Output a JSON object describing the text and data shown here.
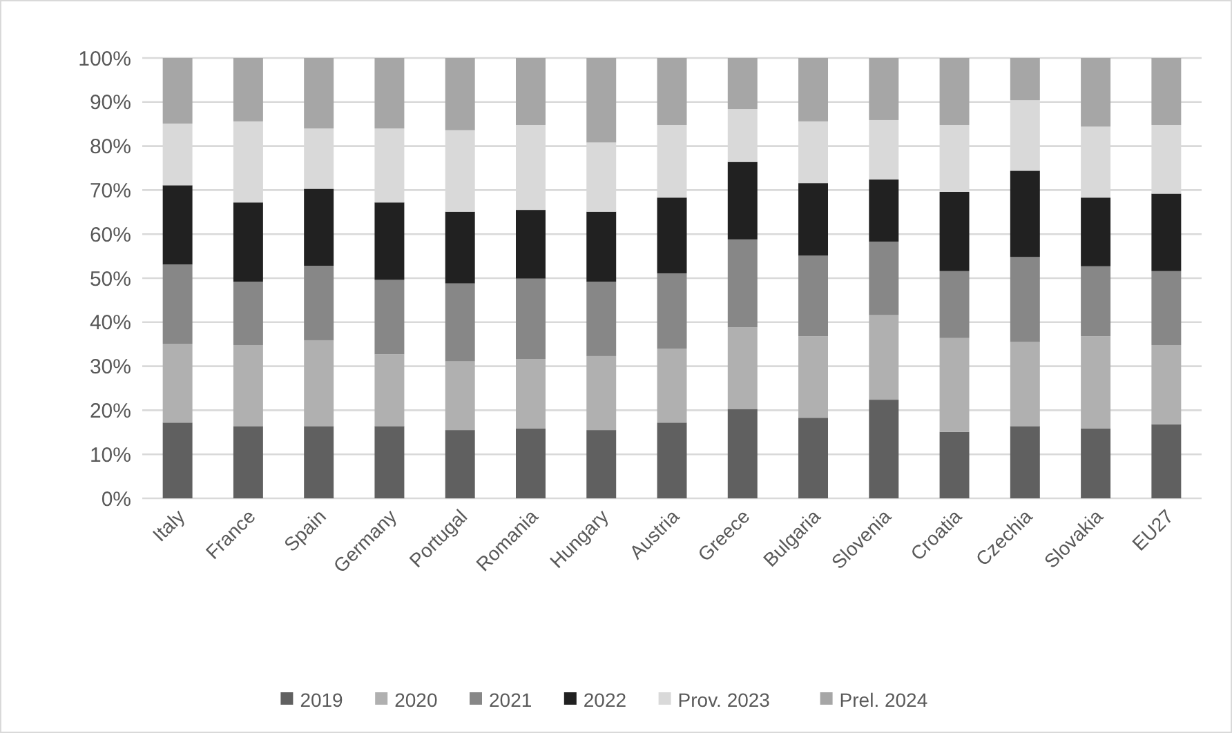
{
  "chart_data": {
    "type": "bar",
    "stacked": true,
    "categories": [
      "Italy",
      "France",
      "Spain",
      "Germany",
      "Portugal",
      "Romania",
      "Hungary",
      "Austria",
      "Greece",
      "Bulgaria",
      "Slovenia",
      "Croatia",
      "Czechia",
      "Slovakia",
      "EU27"
    ],
    "series": [
      {
        "name": "2019",
        "color": "#606060",
        "values": [
          17.2,
          16.4,
          16.4,
          16.4,
          15.5,
          15.9,
          15.5,
          17.2,
          20.3,
          18.3,
          22.4,
          15.1,
          16.4,
          15.9,
          16.8
        ]
      },
      {
        "name": "2020",
        "color": "#b0b0b0",
        "values": [
          17.9,
          18.4,
          19.5,
          16.3,
          15.6,
          15.7,
          16.8,
          16.8,
          18.5,
          18.5,
          19.2,
          21.3,
          19.1,
          20.9,
          18.0
        ]
      },
      {
        "name": "2021",
        "color": "#878787",
        "values": [
          18.0,
          14.4,
          16.9,
          16.9,
          17.7,
          18.3,
          16.9,
          17.1,
          20.0,
          18.3,
          16.7,
          15.2,
          19.3,
          15.9,
          16.8
        ]
      },
      {
        "name": "2022",
        "color": "#212121",
        "values": [
          18.0,
          18.0,
          17.5,
          17.6,
          16.3,
          15.6,
          15.9,
          17.2,
          17.6,
          16.5,
          14.1,
          18.0,
          19.6,
          15.6,
          17.6
        ]
      },
      {
        "name": "Prov. 2023",
        "color": "#d9d9d9",
        "values": [
          14.0,
          18.4,
          13.7,
          16.8,
          18.5,
          19.3,
          15.7,
          16.5,
          12.0,
          14.0,
          13.5,
          15.2,
          16.0,
          16.1,
          15.6
        ]
      },
      {
        "name": "Prel. 2024",
        "color": "#a6a6a6",
        "values": [
          14.9,
          14.4,
          16.0,
          16.0,
          16.4,
          15.2,
          19.2,
          15.2,
          11.6,
          14.4,
          14.1,
          15.2,
          9.6,
          15.6,
          15.2
        ]
      }
    ],
    "ylim": [
      0,
      100
    ],
    "yticks": [
      {
        "value": 0,
        "label": "0%"
      },
      {
        "value": 10,
        "label": "10%"
      },
      {
        "value": 20,
        "label": "20%"
      },
      {
        "value": 30,
        "label": "30%"
      },
      {
        "value": 40,
        "label": "40%"
      },
      {
        "value": 50,
        "label": "50%"
      },
      {
        "value": 60,
        "label": "60%"
      },
      {
        "value": 70,
        "label": "70%"
      },
      {
        "value": 80,
        "label": "80%"
      },
      {
        "value": 90,
        "label": "90%"
      },
      {
        "value": 100,
        "label": "100%"
      }
    ],
    "grid": "y",
    "legend": "bottom"
  }
}
